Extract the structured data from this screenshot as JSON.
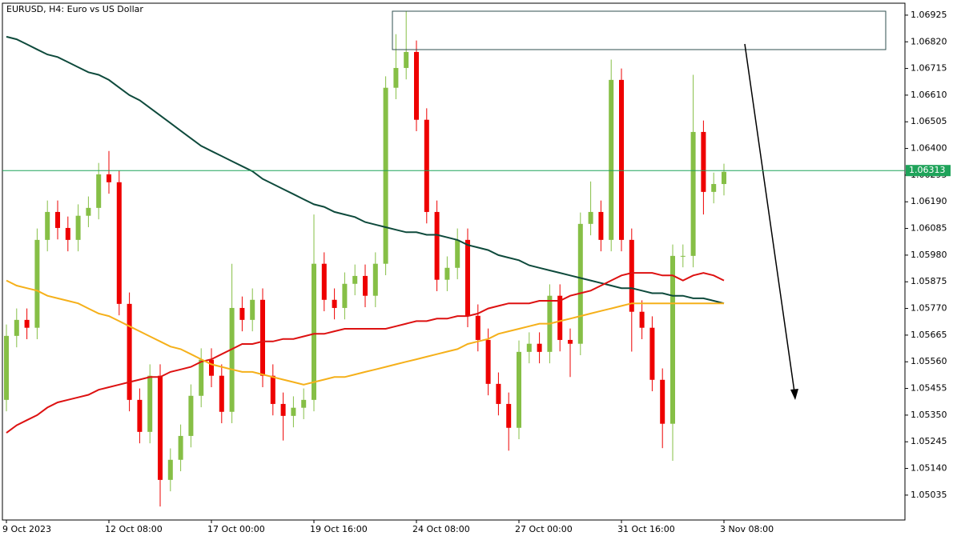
{
  "chart_data": {
    "type": "candlestick",
    "title": "EURUSD, H4:  Euro vs US Dollar",
    "categories": [
      "9 Oct 2023",
      null,
      null,
      null,
      null,
      null,
      null,
      null,
      null,
      null,
      "12 Oct 08:00",
      null,
      null,
      null,
      null,
      null,
      null,
      null,
      null,
      null,
      "17 Oct 00:00",
      null,
      null,
      null,
      null,
      null,
      null,
      null,
      null,
      null,
      "19 Oct 16:00",
      null,
      null,
      null,
      null,
      null,
      null,
      null,
      null,
      null,
      "24 Oct 08:00",
      null,
      null,
      null,
      null,
      null,
      null,
      null,
      null,
      null,
      "27 Oct 00:00",
      null,
      null,
      null,
      null,
      null,
      null,
      null,
      null,
      null,
      "31 Oct 16:00",
      null,
      null,
      null,
      null,
      null,
      null,
      null,
      null,
      null,
      "3 Nov 08:00"
    ],
    "open": [
      1.0541,
      1.05662,
      1.05725,
      1.05694,
      1.0604,
      1.0615,
      1.06087,
      1.0604,
      1.06135,
      1.06166,
      1.06298,
      1.06267,
      1.05788,
      1.0541,
      1.05284,
      1.05505,
      1.05095,
      1.05174,
      1.05268,
      1.05426,
      1.05568,
      1.05505,
      1.05363,
      1.05772,
      1.05725,
      1.05804,
      1.05505,
      1.05394,
      1.05347,
      1.05379,
      1.0541,
      1.05946,
      1.05804,
      1.05772,
      1.05867,
      1.05898,
      1.0582,
      1.05946,
      1.06639,
      1.06717,
      1.0678,
      1.06513,
      1.0615,
      1.05883,
      1.0593,
      1.0604,
      1.05741,
      1.05646,
      1.05473,
      1.05394,
      1.053,
      1.05599,
      1.05631,
      1.05599,
      1.0582,
      1.05646,
      1.05631,
      1.06103,
      1.0615,
      1.0604,
      1.0667,
      1.0604,
      1.05757,
      1.05694,
      1.05489,
      1.05316,
      1.05977,
      1.05977,
      1.06465,
      1.06229,
      1.0626
    ],
    "high": [
      1.05707,
      1.0577,
      1.0577,
      1.06085,
      1.06195,
      1.06195,
      1.06132,
      1.0618,
      1.06211,
      1.06343,
      1.0639,
      1.06312,
      1.05833,
      1.05455,
      1.0555,
      1.0555,
      1.05219,
      1.05313,
      1.05471,
      1.05613,
      1.05613,
      1.0555,
      1.05946,
      1.05817,
      1.05849,
      1.05849,
      1.0555,
      1.05439,
      1.05424,
      1.05455,
      1.0614,
      1.05991,
      1.05849,
      1.05912,
      1.05943,
      1.05943,
      1.05991,
      1.06684,
      1.0685,
      1.0694,
      1.06825,
      1.06558,
      1.06195,
      1.05975,
      1.06085,
      1.06085,
      1.05786,
      1.05691,
      1.05518,
      1.05439,
      1.05644,
      1.05676,
      1.05676,
      1.05865,
      1.05865,
      1.05691,
      1.06148,
      1.0627,
      1.06195,
      1.0675,
      1.06715,
      1.06085,
      1.05802,
      1.05739,
      1.05534,
      1.06022,
      1.06022,
      1.0669,
      1.0651,
      1.06305,
      1.0634
    ],
    "low": [
      1.05365,
      1.05617,
      1.05649,
      1.05649,
      1.05995,
      1.06042,
      1.05995,
      1.05995,
      1.0609,
      1.06121,
      1.06222,
      1.05743,
      1.05365,
      1.05239,
      1.05239,
      1.0499,
      1.0505,
      1.05129,
      1.05223,
      1.05381,
      1.0546,
      1.05318,
      1.05318,
      1.0568,
      1.0568,
      1.0546,
      1.05349,
      1.0525,
      1.05302,
      1.05334,
      1.05365,
      1.05759,
      1.05727,
      1.05727,
      1.05822,
      1.05775,
      1.05775,
      1.05901,
      1.06594,
      1.06672,
      1.06468,
      1.06105,
      1.05838,
      1.05838,
      1.05885,
      1.05696,
      1.05601,
      1.05428,
      1.05349,
      1.0521,
      1.05255,
      1.05554,
      1.05554,
      1.05554,
      1.05601,
      1.055,
      1.05586,
      1.06058,
      1.05995,
      1.05995,
      1.05995,
      1.056,
      1.05649,
      1.05444,
      1.0522,
      1.0517,
      1.05932,
      1.05932,
      1.0614,
      1.06184,
      1.06215
    ],
    "close": [
      1.05662,
      1.05725,
      1.05694,
      1.0604,
      1.0615,
      1.06087,
      1.0604,
      1.06135,
      1.06166,
      1.06298,
      1.06267,
      1.05788,
      1.0541,
      1.05284,
      1.05505,
      1.05095,
      1.05174,
      1.05268,
      1.05426,
      1.05568,
      1.05505,
      1.05363,
      1.05772,
      1.05725,
      1.05804,
      1.05505,
      1.05394,
      1.05347,
      1.05379,
      1.0541,
      1.05946,
      1.05804,
      1.05772,
      1.05867,
      1.05898,
      1.0582,
      1.05946,
      1.06639,
      1.06717,
      1.0678,
      1.06513,
      1.0615,
      1.05883,
      1.0593,
      1.0604,
      1.05741,
      1.05646,
      1.05473,
      1.05394,
      1.053,
      1.05599,
      1.05631,
      1.05599,
      1.0582,
      1.05646,
      1.05631,
      1.06103,
      1.0615,
      1.0604,
      1.0667,
      1.0604,
      1.05757,
      1.05694,
      1.05489,
      1.05316,
      1.05977,
      1.05977,
      1.06465,
      1.06229,
      1.0626,
      1.06308
    ],
    "up_color": "#86bf46",
    "down_color": "#ee0000",
    "series": [
      {
        "color": "#0e4a3c",
        "values": [
          1.0684,
          1.0683,
          1.0681,
          1.0679,
          1.0677,
          1.0676,
          1.0674,
          1.0672,
          1.067,
          1.0669,
          1.0667,
          1.0664,
          1.0661,
          1.0659,
          1.0656,
          1.0653,
          1.065,
          1.0647,
          1.0644,
          1.0641,
          1.0639,
          1.0637,
          1.0635,
          1.0633,
          1.0631,
          1.0628,
          1.0626,
          1.0624,
          1.0622,
          1.062,
          1.0618,
          1.0617,
          1.0615,
          1.0614,
          1.0613,
          1.0611,
          1.061,
          1.0609,
          1.0608,
          1.0607,
          1.0607,
          1.0606,
          1.0606,
          1.0605,
          1.0604,
          1.0602,
          1.0601,
          1.06,
          1.0598,
          1.0597,
          1.0596,
          1.0594,
          1.0593,
          1.0592,
          1.0591,
          1.059,
          1.0589,
          1.0588,
          1.0587,
          1.0586,
          1.0585,
          1.0585,
          1.0584,
          1.0583,
          1.0583,
          1.0582,
          1.0582,
          1.0581,
          1.0581,
          1.058,
          1.0579
        ]
      },
      {
        "color": "#dd1111",
        "values": [
          1.0528,
          1.0531,
          1.0533,
          1.0535,
          1.0538,
          1.054,
          1.0541,
          1.0542,
          1.0543,
          1.0545,
          1.0546,
          1.0547,
          1.0548,
          1.0549,
          1.055,
          1.055,
          1.0552,
          1.0553,
          1.0554,
          1.0556,
          1.0557,
          1.0559,
          1.0561,
          1.0563,
          1.0563,
          1.0564,
          1.0564,
          1.0565,
          1.0565,
          1.0566,
          1.0567,
          1.0567,
          1.0568,
          1.0569,
          1.0569,
          1.0569,
          1.0569,
          1.0569,
          1.057,
          1.0571,
          1.0572,
          1.0572,
          1.0573,
          1.0573,
          1.0574,
          1.0574,
          1.0575,
          1.0577,
          1.0578,
          1.0579,
          1.0579,
          1.0579,
          1.058,
          1.058,
          1.058,
          1.0582,
          1.0583,
          1.0584,
          1.0586,
          1.0588,
          1.059,
          1.0591,
          1.0591,
          1.0591,
          1.059,
          1.059,
          1.0588,
          1.059,
          1.0591,
          1.059,
          1.0588
        ]
      },
      {
        "color": "#f5b01a",
        "values": [
          1.0588,
          1.0586,
          1.0585,
          1.0584,
          1.0582,
          1.0581,
          1.058,
          1.0579,
          1.0577,
          1.0575,
          1.0574,
          1.0572,
          1.057,
          1.0568,
          1.0566,
          1.0564,
          1.0562,
          1.0561,
          1.0559,
          1.0557,
          1.0555,
          1.0554,
          1.0553,
          1.0552,
          1.0552,
          1.0551,
          1.055,
          1.0549,
          1.0548,
          1.0547,
          1.0548,
          1.0549,
          1.055,
          1.055,
          1.0551,
          1.0552,
          1.0553,
          1.0554,
          1.0555,
          1.0556,
          1.0557,
          1.0558,
          1.0559,
          1.056,
          1.0561,
          1.0563,
          1.0564,
          1.0565,
          1.0567,
          1.0568,
          1.0569,
          1.057,
          1.0571,
          1.0571,
          1.0572,
          1.0573,
          1.0574,
          1.0575,
          1.0576,
          1.0577,
          1.0578,
          1.0579,
          1.0579,
          1.0579,
          1.0579,
          1.0579,
          1.0579,
          1.0579,
          1.0579,
          1.0579,
          1.0579
        ]
      }
    ],
    "current_price": 1.06313,
    "current_price_color": "#1fa35a",
    "ylim": [
      1.04937,
      1.06972
    ],
    "yticks": [
      1.05035,
      {
        "value": 1.0514,
        "label": "1.05140"
      },
      1.05245,
      {
        "value": 1.0535,
        "label": "1.05350"
      },
      1.05455,
      {
        "value": 1.0556,
        "label": "1.05560"
      },
      1.05665,
      {
        "value": 1.0577,
        "label": "1.05770"
      },
      1.05875,
      {
        "value": 1.0598,
        "label": "1.05980"
      },
      1.06085,
      {
        "value": 1.0619,
        "label": "1.06190"
      },
      1.06295,
      {
        "value": 1.064,
        "label": "1.06400"
      },
      1.06505,
      {
        "value": 1.0661,
        "label": "1.06610"
      },
      1.06715,
      {
        "value": 1.0682,
        "label": "1.06820"
      },
      1.06925
    ]
  }
}
